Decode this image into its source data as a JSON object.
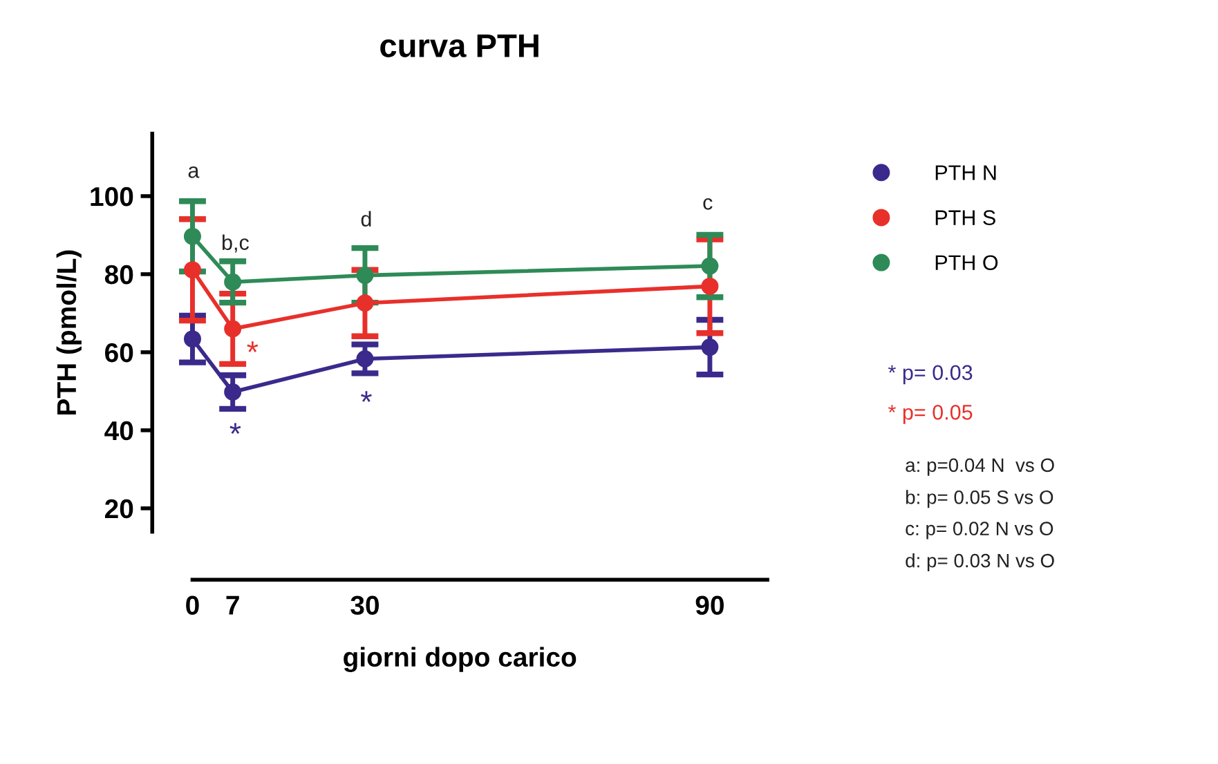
{
  "chart_data": {
    "type": "line",
    "title": "curva PTH",
    "xlabel": "giorni dopo carico",
    "ylabel": "PTH (pmol/L)",
    "x": [
      0,
      7,
      30,
      90
    ],
    "xlim": [
      -7,
      100
    ],
    "xticks": [
      0,
      7,
      30,
      90
    ],
    "ylim": [
      14,
      116
    ],
    "yticks": [
      20,
      40,
      60,
      80,
      100
    ],
    "marker": "circle",
    "line_style": "solid",
    "grid": false,
    "legend": "top right",
    "series": [
      {
        "name": "PTH N",
        "color": "#3b2a8c",
        "values": [
          63.4,
          49.8,
          58.3,
          61.3
        ],
        "errors": [
          6,
          4.3,
          3.7,
          7
        ]
      },
      {
        "name": "PTH S",
        "color": "#e8302b",
        "values": [
          81.1,
          66,
          72.6,
          76.9
        ],
        "errors": [
          13,
          9,
          8.5,
          12
        ]
      },
      {
        "name": "PTH O",
        "color": "#2e8b57",
        "values": [
          89.7,
          78,
          79.7,
          82.1
        ],
        "errors": [
          9,
          5.3,
          7,
          8
        ]
      }
    ],
    "annotations": [
      "a",
      "b,c",
      "d",
      "c",
      "*",
      "*",
      "*",
      "* p= 0.03",
      "* p= 0.05",
      "a: p=0.04 N  vs O",
      "b: p= 0.05 S vs O",
      "c: p= 0.02 N vs O",
      "d: p= 0.03 N vs O"
    ]
  }
}
